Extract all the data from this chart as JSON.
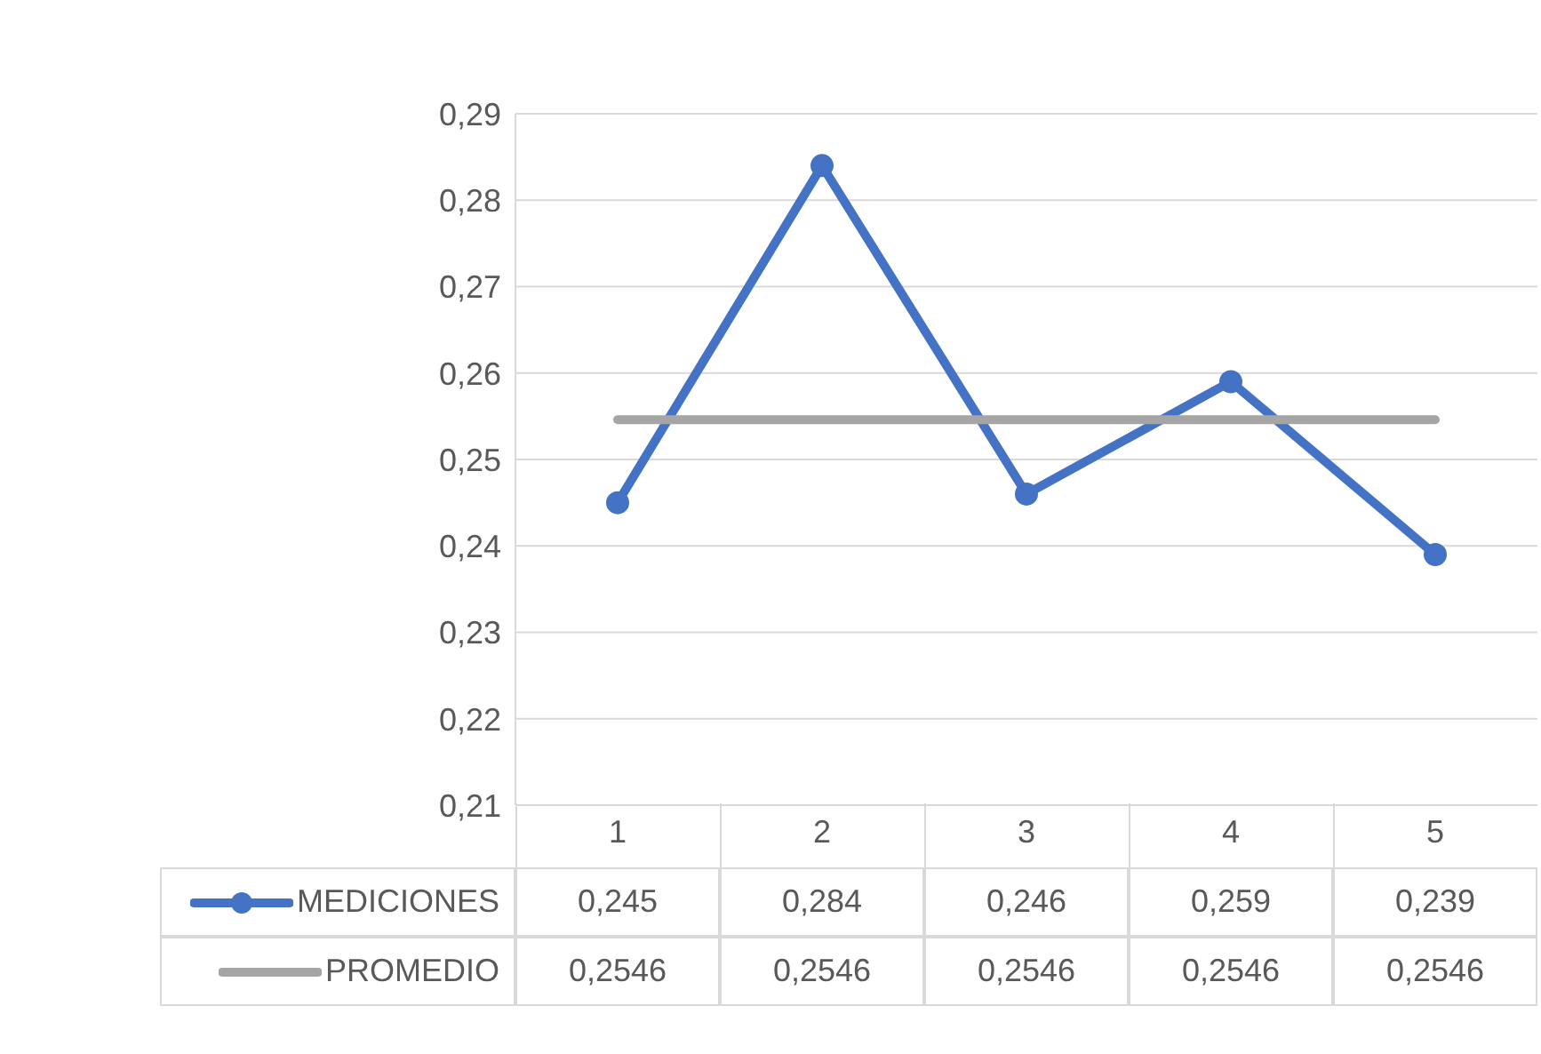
{
  "chart_data": {
    "type": "line",
    "categories": [
      "1",
      "2",
      "3",
      "4",
      "5"
    ],
    "series": [
      {
        "name": "MEDICIONES",
        "color": "#4472c4",
        "marker": "circle",
        "values": [
          0.245,
          0.284,
          0.246,
          0.259,
          0.239
        ],
        "value_labels": [
          "0,245",
          "0,284",
          "0,246",
          "0,259",
          "0,239"
        ]
      },
      {
        "name": "PROMEDIO",
        "color": "#a5a5a5",
        "marker": "none",
        "values": [
          0.2546,
          0.2546,
          0.2546,
          0.2546,
          0.2546
        ],
        "value_labels": [
          "0,2546",
          "0,2546",
          "0,2546",
          "0,2546",
          "0,2546"
        ]
      }
    ],
    "ylim": [
      0.21,
      0.29
    ],
    "yticks": [
      {
        "value": 0.21,
        "label": "0,21"
      },
      {
        "value": 0.22,
        "label": "0,22"
      },
      {
        "value": 0.23,
        "label": "0,23"
      },
      {
        "value": 0.24,
        "label": "0,24"
      },
      {
        "value": 0.25,
        "label": "0,25"
      },
      {
        "value": 0.26,
        "label": "0,26"
      },
      {
        "value": 0.27,
        "label": "0,27"
      },
      {
        "value": 0.28,
        "label": "0,28"
      },
      {
        "value": 0.29,
        "label": "0,29"
      }
    ],
    "grid": "y",
    "legend": "bottom"
  }
}
